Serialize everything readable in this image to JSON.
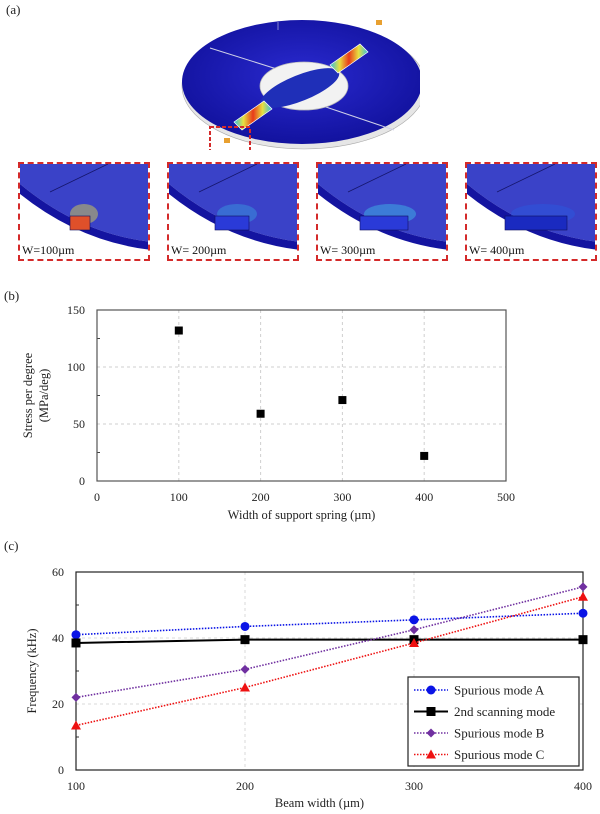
{
  "panels": {
    "a": {
      "label": "(a)"
    },
    "b": {
      "label": "(b)"
    },
    "c": {
      "label": "(c)"
    }
  },
  "figure_a": {
    "description": "FEM stress distribution of circular scanner with support springs",
    "insets": [
      {
        "caption": "W=100µm"
      },
      {
        "caption": "W= 200µm"
      },
      {
        "caption": "W= 300µm"
      },
      {
        "caption": "W= 400µm"
      }
    ],
    "colors": {
      "highlight_box": "#d42a2a",
      "low_stress": "#1a1aa8",
      "high_stress": "#e83a1a"
    }
  },
  "chart_data": [
    {
      "id": "b",
      "type": "scatter",
      "title": "",
      "xlabel": "Width of support spring (µm)",
      "ylabel_line1": "Stress per degree",
      "ylabel_line2": "(MPa/deg)",
      "xlim": [
        0,
        500
      ],
      "ylim": [
        0,
        150
      ],
      "xticks": [
        0,
        100,
        200,
        300,
        400,
        500
      ],
      "yticks": [
        0,
        50,
        100,
        150
      ],
      "grid": true,
      "series": [
        {
          "name": "Stress per degree",
          "x": [
            100,
            200,
            300,
            400
          ],
          "y": [
            132,
            59,
            71,
            22
          ],
          "marker": "square",
          "color": "#000000"
        }
      ]
    },
    {
      "id": "c",
      "type": "line",
      "title": "",
      "xlabel": "Beam width (µm)",
      "ylabel": "Frequency (kHz)",
      "xlim": [
        100,
        400
      ],
      "ylim": [
        0,
        60
      ],
      "xticks": [
        100,
        200,
        300,
        400
      ],
      "yticks": [
        0,
        20,
        40,
        60
      ],
      "grid": true,
      "legend_position": "bottom-right",
      "x": [
        100,
        200,
        300,
        400
      ],
      "series": [
        {
          "name": "Spurious mode A",
          "values": [
            41,
            43.5,
            45.5,
            47.5
          ],
          "marker": "circle",
          "color": "#0a14e6",
          "line": "dotted"
        },
        {
          "name": "2nd scanning mode",
          "values": [
            38.5,
            39.5,
            39.5,
            39.5
          ],
          "marker": "square",
          "color": "#000000",
          "line": "solid"
        },
        {
          "name": "Spurious mode B",
          "values": [
            22,
            30.5,
            42.5,
            55.5
          ],
          "marker": "diamond",
          "color": "#7030a0",
          "line": "dotted"
        },
        {
          "name": "Spurious mode C",
          "values": [
            13.5,
            25,
            38.5,
            52.5
          ],
          "marker": "triangle",
          "color": "#ee1111",
          "line": "dotted"
        }
      ]
    }
  ]
}
